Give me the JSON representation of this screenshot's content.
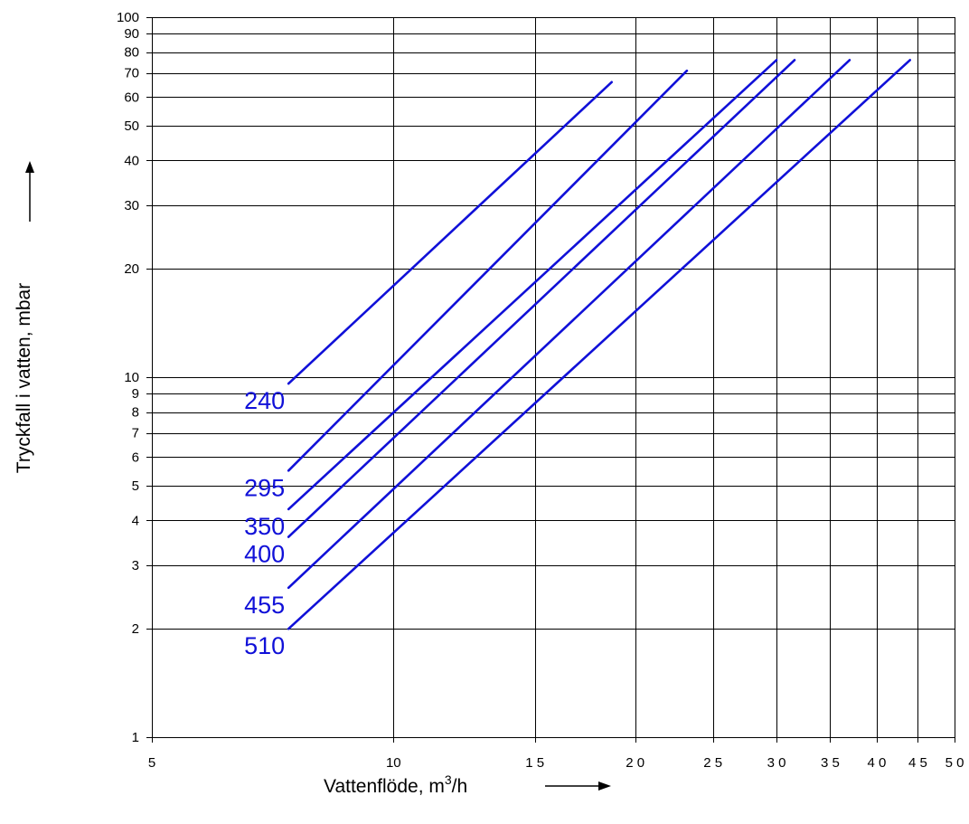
{
  "chart_data": {
    "type": "line",
    "xscale": "log",
    "yscale": "log",
    "xlabel_main": "Vattenflöde, m",
    "xlabel_sup": "3",
    "xlabel_tail": "/h",
    "ylabel": "Tryckfall i vatten, mbar",
    "xlim": [
      5,
      50
    ],
    "ylim": [
      1,
      100
    ],
    "grid": true,
    "x_ticks": [
      {
        "value": 5,
        "label": "5"
      },
      {
        "value": 10,
        "label": "10"
      },
      {
        "value": 15,
        "label": "1 5"
      },
      {
        "value": 20,
        "label": "2 0"
      },
      {
        "value": 25,
        "label": "2 5"
      },
      {
        "value": 30,
        "label": "3 0"
      },
      {
        "value": 35,
        "label": "3 5"
      },
      {
        "value": 40,
        "label": "4 0"
      },
      {
        "value": 45,
        "label": "4 5"
      },
      {
        "value": 50,
        "label": "5 0"
      }
    ],
    "y_ticks": [
      {
        "value": 1,
        "label": "1"
      },
      {
        "value": 2,
        "label": "2"
      },
      {
        "value": 3,
        "label": "3"
      },
      {
        "value": 4,
        "label": "4"
      },
      {
        "value": 5,
        "label": "5"
      },
      {
        "value": 6,
        "label": "6"
      },
      {
        "value": 7,
        "label": "7"
      },
      {
        "value": 8,
        "label": "8"
      },
      {
        "value": 9,
        "label": "9"
      },
      {
        "value": 10,
        "label": "10"
      },
      {
        "value": 20,
        "label": "20"
      },
      {
        "value": 30,
        "label": "30"
      },
      {
        "value": 40,
        "label": "40"
      },
      {
        "value": 50,
        "label": "50"
      },
      {
        "value": 60,
        "label": "60"
      },
      {
        "value": 70,
        "label": "70"
      },
      {
        "value": 80,
        "label": "80"
      },
      {
        "value": 90,
        "label": "90"
      },
      {
        "value": 100,
        "label": "100"
      }
    ],
    "series": [
      {
        "name": "240",
        "x": [
          7.4,
          18.7
        ],
        "y": [
          9.6,
          66
        ]
      },
      {
        "name": "295",
        "x": [
          7.4,
          23.2
        ],
        "y": [
          5.5,
          71
        ]
      },
      {
        "name": "350",
        "x": [
          7.4,
          30.0
        ],
        "y": [
          4.3,
          76
        ]
      },
      {
        "name": "400",
        "x": [
          7.4,
          31.6
        ],
        "y": [
          3.6,
          76
        ]
      },
      {
        "name": "455",
        "x": [
          7.4,
          37.0
        ],
        "y": [
          2.6,
          76
        ]
      },
      {
        "name": "510",
        "x": [
          7.4,
          44.0
        ],
        "y": [
          2.0,
          76
        ]
      }
    ],
    "color": "#1010d8"
  }
}
